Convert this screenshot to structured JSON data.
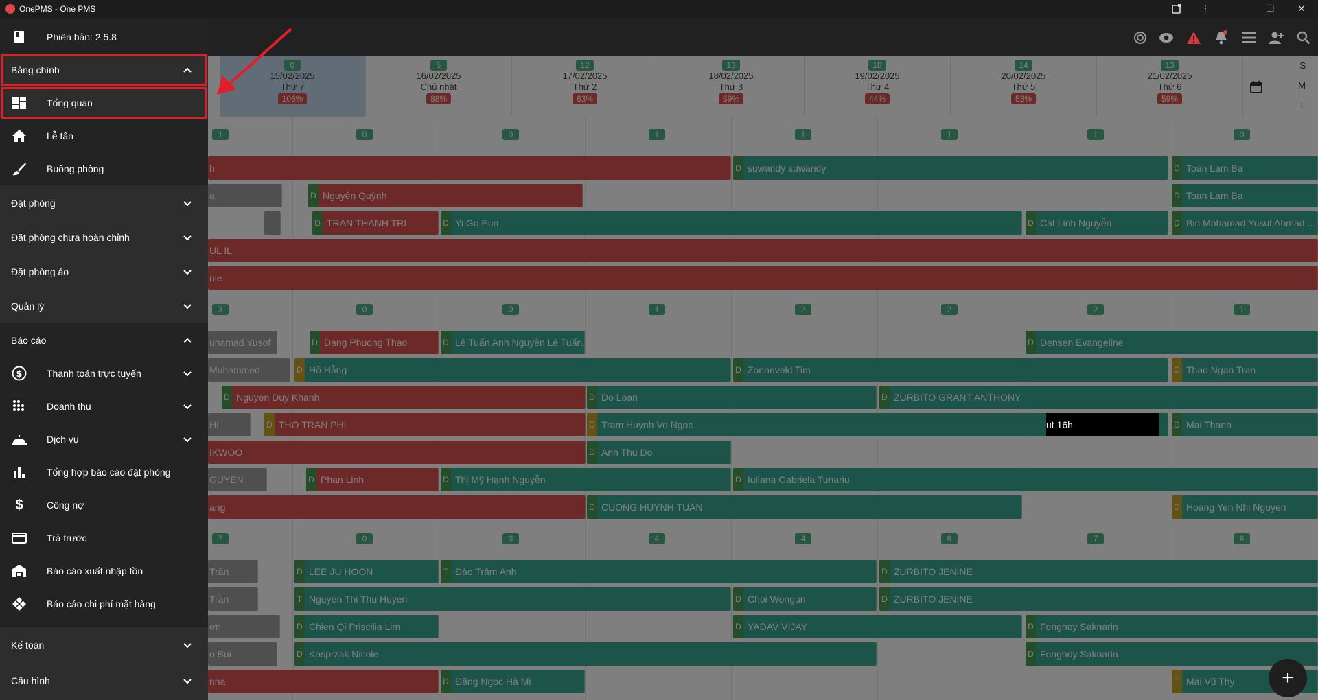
{
  "window": {
    "title": "OnePMS - One PMS"
  },
  "dates": [
    {
      "count": "0",
      "date": "15/02/2025",
      "day": "Thứ 7",
      "pct": "106%"
    },
    {
      "count": "5",
      "date": "16/02/2025",
      "day": "Chủ nhật",
      "pct": "88%"
    },
    {
      "count": "12",
      "date": "17/02/2025",
      "day": "Thứ 2",
      "pct": "63%"
    },
    {
      "count": "13",
      "date": "18/02/2025",
      "day": "Thứ 3",
      "pct": "59%"
    },
    {
      "count": "18",
      "date": "19/02/2025",
      "day": "Thứ 4",
      "pct": "44%"
    },
    {
      "count": "14",
      "date": "20/02/2025",
      "day": "Thứ 5",
      "pct": "53%"
    },
    {
      "count": "13",
      "date": "21/02/2025",
      "day": "Thứ 6",
      "pct": "59%"
    }
  ],
  "size_toggle": {
    "s": "S",
    "m": "M",
    "l": "L"
  },
  "count_rows": [
    [
      "1",
      "0",
      "0",
      "1",
      "1",
      "1",
      "1",
      "0"
    ],
    [
      "3",
      "0",
      "0",
      "1",
      "2",
      "2",
      "2",
      "1"
    ],
    [
      "7",
      "0",
      "3",
      "4",
      "4",
      "8",
      "7",
      "6"
    ]
  ],
  "bookings": [
    {
      "text": "h",
      "tag": ""
    },
    {
      "text": "suwandy suwandy",
      "tag": "D"
    },
    {
      "text": "Toan Lam Ba",
      "tag": "D"
    },
    {
      "text": "a",
      "tag": ""
    },
    {
      "text": "Nguyễn Quỳnh",
      "tag": "D"
    },
    {
      "text": "Toan Lam Ba",
      "tag": "D"
    },
    {
      "text": "",
      "tag": ""
    },
    {
      "text": "TRAN THANH TRI",
      "tag": "D"
    },
    {
      "text": "Yi Go Eun",
      "tag": "D"
    },
    {
      "text": "Cát Linh Nguyễn",
      "tag": "D"
    },
    {
      "text": "Bin Mohamad Yusuf Ahmad ...",
      "tag": "D"
    },
    {
      "text": "UL IL",
      "tag": ""
    },
    {
      "text": "nie",
      "tag": ""
    },
    {
      "text": "uhamad Yusof",
      "tag": ""
    },
    {
      "text": "Dang Phuong Thao",
      "tag": "D"
    },
    {
      "text": "Lê Tuấn Anh Nguyễn Lê Tuấn...",
      "tag": "D"
    },
    {
      "text": "Densen Evangeline",
      "tag": "D"
    },
    {
      "text": "Muhammed",
      "tag": ""
    },
    {
      "text": "Hồ Hằng",
      "tag": "D"
    },
    {
      "text": "Zonneveld Tim",
      "tag": "D"
    },
    {
      "text": "Thao Ngan Tran",
      "tag": "D"
    },
    {
      "text": "Nguyen Duy Khanh",
      "tag": "D"
    },
    {
      "text": "Do Loan",
      "tag": "D"
    },
    {
      "text": "ZURBITO GRANT ANTHONY",
      "tag": "D"
    },
    {
      "text": "HI",
      "tag": ""
    },
    {
      "text": "THO TRAN PHI",
      "tag": "D"
    },
    {
      "text": "Tram Huynh Vo Ngoc",
      "tag": "D"
    },
    {
      "text": "Mai Thanh",
      "tag": "D"
    },
    {
      "text": "IKWOO",
      "tag": ""
    },
    {
      "text": "Anh Thu Do",
      "tag": "D"
    },
    {
      "text": "GUYEN",
      "tag": ""
    },
    {
      "text": "Phan Linh",
      "tag": "D"
    },
    {
      "text": "Thị Mỹ Hạnh Nguyễn",
      "tag": "D"
    },
    {
      "text": "Iuliana Gabriela Tunariu",
      "tag": "D"
    },
    {
      "text": "ang",
      "tag": ""
    },
    {
      "text": "CUONG HUYNH TUAN",
      "tag": "D"
    },
    {
      "text": "Hoang Yen Nhi Nguyen",
      "tag": "D"
    },
    {
      "text": "Trần",
      "tag": ""
    },
    {
      "text": "LEE JU HOON",
      "tag": "D"
    },
    {
      "text": "Đào Trâm Anh",
      "tag": "T"
    },
    {
      "text": "ZURBITO JENINE",
      "tag": "D"
    },
    {
      "text": "Trần",
      "tag": ""
    },
    {
      "text": "Nguyen Thi Thu Huyen",
      "tag": "T"
    },
    {
      "text": "Choi Wongun",
      "tag": "D"
    },
    {
      "text": "ZURBITO JENINE",
      "tag": "D"
    },
    {
      "text": "ơn",
      "tag": ""
    },
    {
      "text": "Chien Qi Priscilia Lim",
      "tag": "D"
    },
    {
      "text": "YADAV VIJAY",
      "tag": "D"
    },
    {
      "text": "Fonghoy Saknarin",
      "tag": "D"
    },
    {
      "text": "o Bui",
      "tag": ""
    },
    {
      "text": "Kasprzak Nicole",
      "tag": "D"
    },
    {
      "text": "Fonghoy Saknarin",
      "tag": "D"
    },
    {
      "text": "nna",
      "tag": ""
    },
    {
      "text": "Đặng Ngọc Hà Mi",
      "tag": "D"
    },
    {
      "text": "Mai Vũ Thy",
      "tag": "T"
    }
  ],
  "black_note": "ut 16h",
  "sidebar": {
    "version": "Phiên bản: 2.5.8",
    "main_board": "Bảng chính",
    "overview": "Tổng quan",
    "reception": "Lễ tân",
    "housekeeping": "Buồng phòng",
    "booking": "Đặt phòng",
    "booking_incomplete": "Đặt phòng chưa hoàn chỉnh",
    "booking_virtual": "Đặt phòng ảo",
    "management": "Quản lý",
    "reports": "Báo cáo",
    "online_payment": "Thanh toán trực tuyến",
    "revenue": "Doanh thu",
    "services": "Dịch vụ",
    "booking_summary": "Tổng hợp báo cáo đặt phòng",
    "debt": "Công nợ",
    "prepaid": "Trả trước",
    "inventory_report": "Báo cáo xuất nhập tồn",
    "item_cost_report": "Báo cáo chi phí mặt hàng",
    "accounting": "Kế toán",
    "config": "Cấu hình"
  },
  "fab": "+",
  "colors": {
    "red": "#d9534f",
    "teal": "#3aa895",
    "green": "#4caf84",
    "highlight": "#e01f2a"
  }
}
